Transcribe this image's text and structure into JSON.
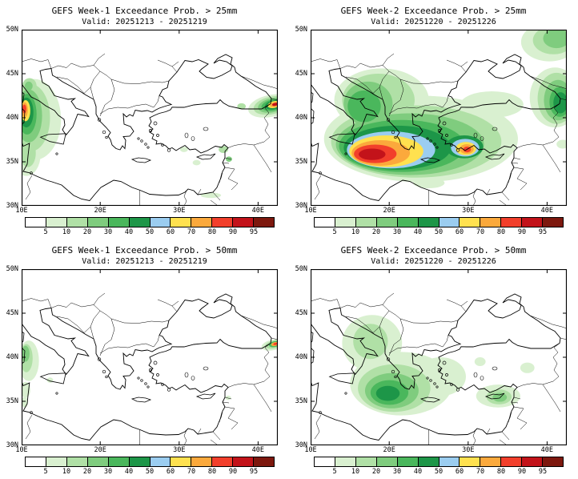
{
  "panels": [
    {
      "title": "GEFS Week-1 Exceedance Prob. > 25mm",
      "valid": "Valid: 20251213 - 20251219",
      "blobs": [
        [
          11.6,
          39.8,
          3.4,
          4.6,
          0,
          1
        ],
        [
          10.6,
          35.8,
          1.8,
          2.4,
          0,
          1
        ],
        [
          13.6,
          37.4,
          0.6,
          0.4,
          0,
          1
        ],
        [
          11.2,
          40.0,
          2.4,
          3.8,
          0,
          2
        ],
        [
          10.8,
          36.0,
          1.0,
          1.6,
          0,
          2
        ],
        [
          11.0,
          43.6,
          0.9,
          0.9,
          0,
          2
        ],
        [
          10.9,
          40.2,
          1.7,
          3.0,
          0,
          3
        ],
        [
          10.9,
          43.6,
          0.5,
          0.5,
          0,
          3
        ],
        [
          10.7,
          40.4,
          1.2,
          2.3,
          0,
          4
        ],
        [
          10.6,
          40.6,
          0.9,
          1.7,
          0,
          5
        ],
        [
          10.5,
          40.8,
          0.6,
          1.2,
          0,
          7
        ],
        [
          10.4,
          40.9,
          0.4,
          0.85,
          0,
          8
        ],
        [
          10.35,
          41.0,
          0.25,
          0.5,
          0,
          9
        ],
        [
          41.6,
          41.35,
          2.9,
          1.25,
          -12,
          1
        ],
        [
          41.7,
          41.4,
          2.3,
          1.0,
          -12,
          2
        ],
        [
          41.8,
          41.42,
          1.85,
          0.8,
          -12,
          3
        ],
        [
          41.9,
          41.45,
          1.5,
          0.63,
          -12,
          4
        ],
        [
          42.0,
          41.47,
          1.15,
          0.5,
          -12,
          5
        ],
        [
          42.05,
          41.5,
          0.85,
          0.38,
          -12,
          7
        ],
        [
          42.1,
          41.5,
          0.6,
          0.27,
          -12,
          8
        ],
        [
          42.15,
          41.52,
          0.38,
          0.17,
          -12,
          10
        ],
        [
          37.9,
          41.3,
          0.55,
          0.35,
          0,
          2
        ],
        [
          30.6,
          36.4,
          0.5,
          0.3,
          0,
          1
        ],
        [
          32.2,
          34.9,
          0.5,
          0.3,
          0,
          1
        ],
        [
          35.6,
          36.4,
          0.6,
          0.4,
          0,
          2
        ],
        [
          36.3,
          35.3,
          0.4,
          0.3,
          0,
          3
        ],
        [
          34.0,
          31.2,
          1.3,
          0.3,
          0,
          1
        ]
      ]
    },
    {
      "title": "GEFS Week-2 Exceedance Prob. > 25mm",
      "valid": "Valid: 20251220 - 20251226",
      "blobs": [
        [
          24.0,
          37.6,
          12.3,
          4.9,
          0,
          1
        ],
        [
          19.0,
          42.0,
          6.0,
          3.6,
          0,
          1
        ],
        [
          41.0,
          42.3,
          3.2,
          3.4,
          0,
          1
        ],
        [
          40.3,
          48.6,
          3.6,
          2.2,
          0,
          1
        ],
        [
          33.0,
          41.5,
          4.0,
          1.5,
          0,
          1
        ],
        [
          42.0,
          37.0,
          0.8,
          0.5,
          0,
          1
        ],
        [
          25.0,
          32.6,
          2.0,
          0.6,
          0,
          1
        ],
        [
          23.4,
          37.3,
          10.8,
          4.1,
          0,
          2
        ],
        [
          18.6,
          42.0,
          4.6,
          3.0,
          0,
          2
        ],
        [
          41.2,
          42.2,
          2.4,
          2.9,
          0,
          2
        ],
        [
          40.8,
          48.8,
          2.6,
          1.6,
          0,
          2
        ],
        [
          22.6,
          37.0,
          9.4,
          3.5,
          0,
          3
        ],
        [
          17.3,
          41.6,
          3.1,
          2.5,
          0,
          3
        ],
        [
          41.4,
          42.0,
          1.8,
          2.3,
          0,
          3
        ],
        [
          41.2,
          49.0,
          1.7,
          1.1,
          0,
          3
        ],
        [
          21.6,
          36.8,
          8.0,
          2.95,
          0,
          4
        ],
        [
          16.8,
          41.3,
          2.1,
          1.8,
          0,
          4
        ],
        [
          41.6,
          41.8,
          1.3,
          1.7,
          0,
          4
        ],
        [
          21.0,
          36.6,
          6.8,
          2.5,
          0,
          5
        ],
        [
          29.5,
          36.7,
          2.4,
          1.3,
          0,
          5
        ],
        [
          41.7,
          41.7,
          0.9,
          1.2,
          0,
          5
        ],
        [
          20.2,
          36.35,
          5.6,
          2.1,
          0,
          6
        ],
        [
          29.6,
          36.6,
          1.8,
          1.0,
          0,
          6
        ],
        [
          19.6,
          36.2,
          4.7,
          1.8,
          0,
          7
        ],
        [
          29.7,
          36.5,
          1.3,
          0.75,
          0,
          7
        ],
        [
          18.9,
          36.0,
          3.7,
          1.45,
          0,
          8
        ],
        [
          29.8,
          36.45,
          0.9,
          0.55,
          0,
          8
        ],
        [
          18.2,
          35.9,
          2.7,
          1.05,
          0,
          9
        ],
        [
          29.85,
          36.4,
          0.5,
          0.33,
          0,
          9
        ],
        [
          17.8,
          35.85,
          1.7,
          0.65,
          0,
          10
        ]
      ]
    },
    {
      "title": "GEFS Week-1 Exceedance Prob. > 50mm",
      "valid": "Valid: 20251213 - 20251219",
      "blobs": [
        [
          10.9,
          39.6,
          1.3,
          2.3,
          0,
          1
        ],
        [
          10.6,
          39.9,
          0.8,
          1.6,
          0,
          2
        ],
        [
          10.5,
          40.4,
          0.5,
          0.9,
          0,
          3
        ],
        [
          10.5,
          36.3,
          0.6,
          0.9,
          0,
          1
        ],
        [
          10.4,
          34.9,
          0.4,
          0.6,
          0,
          1
        ],
        [
          13.6,
          37.4,
          0.4,
          0.3,
          0,
          1
        ],
        [
          41.9,
          41.4,
          1.5,
          0.6,
          -12,
          1
        ],
        [
          42.0,
          41.45,
          1.1,
          0.45,
          -12,
          2
        ],
        [
          42.1,
          41.5,
          0.75,
          0.33,
          -12,
          4
        ],
        [
          42.15,
          41.5,
          0.5,
          0.22,
          -12,
          8
        ],
        [
          42.2,
          41.52,
          0.28,
          0.13,
          -12,
          9
        ],
        [
          36.2,
          35.4,
          0.35,
          0.25,
          0,
          1
        ]
      ]
    },
    {
      "title": "GEFS Week-2 Exceedance Prob. > 50mm",
      "valid": "Valid: 20251220 - 20251226",
      "blobs": [
        [
          21.5,
          37.0,
          6.5,
          3.6,
          0,
          1
        ],
        [
          17.8,
          41.6,
          3.8,
          3.2,
          0,
          1
        ],
        [
          26.5,
          37.8,
          3.2,
          2.2,
          0,
          1
        ],
        [
          33.8,
          35.6,
          2.8,
          1.3,
          0,
          1
        ],
        [
          37.5,
          38.8,
          0.9,
          0.6,
          0,
          1
        ],
        [
          31.5,
          39.5,
          0.7,
          0.5,
          0,
          1
        ],
        [
          20.6,
          36.5,
          4.6,
          2.7,
          0,
          2
        ],
        [
          17.6,
          41.8,
          2.2,
          2.0,
          0,
          2
        ],
        [
          33.9,
          35.5,
          1.6,
          0.85,
          0,
          2
        ],
        [
          20.3,
          36.2,
          3.4,
          2.0,
          0,
          3
        ],
        [
          34.0,
          35.45,
          0.9,
          0.5,
          0,
          3
        ],
        [
          20.0,
          36.0,
          2.4,
          1.4,
          0,
          4
        ],
        [
          19.8,
          35.9,
          1.5,
          0.85,
          0,
          5
        ]
      ]
    }
  ],
  "axes": {
    "lat_labels": [
      "50N",
      "45N",
      "40N",
      "35N",
      "30N"
    ],
    "lat_fracs": [
      0,
      0.25,
      0.5,
      0.75,
      1
    ],
    "lon_labels": [
      "10E",
      "20E",
      "30E",
      "40E"
    ],
    "lon_fracs": [
      0,
      0.307,
      0.615,
      0.923
    ],
    "lon_range": [
      10,
      42.5
    ],
    "lat_range": [
      30,
      50
    ]
  },
  "colorbar": {
    "labels": [
      "5",
      "10",
      "20",
      "30",
      "40",
      "50",
      "60",
      "70",
      "80",
      "90",
      "95"
    ],
    "colors": [
      "#ffffff",
      "#d9f0d0",
      "#b0e0a6",
      "#7fcc7e",
      "#4ab75c",
      "#1d9648",
      "#9bcdf0",
      "#ffe14f",
      "#fba93c",
      "#f23f2b",
      "#c3131a",
      "#7d180e"
    ]
  }
}
